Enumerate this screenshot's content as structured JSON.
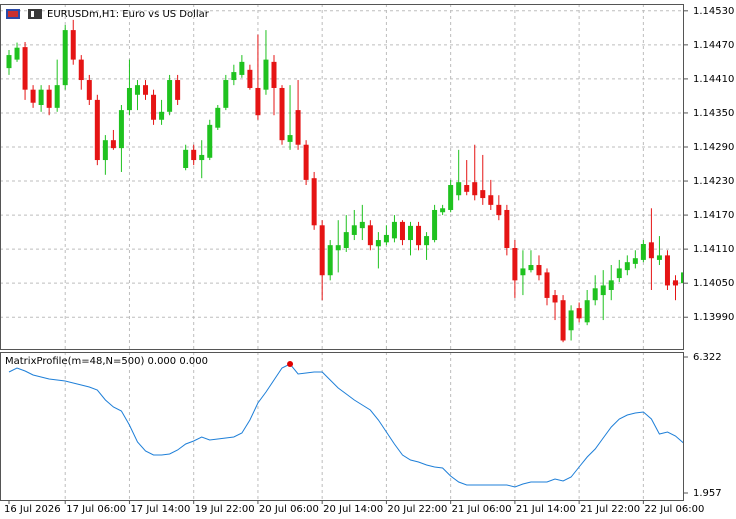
{
  "chart_data": [
    {
      "type": "candlestick",
      "title": "EURUSDm,H1:  Euro vs US Dollar",
      "categories": [
        "16 Jul 2026",
        null,
        null,
        null,
        null,
        null,
        null,
        "17 Jul 06:00",
        null,
        null,
        null,
        null,
        null,
        null,
        null,
        "17 Jul 14:00",
        null,
        null,
        null,
        null,
        null,
        null,
        null,
        "19 Jul 22:00",
        null,
        null,
        null,
        null,
        null,
        null,
        null,
        "20 Jul 06:00",
        null,
        null,
        null,
        null,
        null,
        null,
        null,
        "20 Jul 14:00",
        null,
        null,
        null,
        null,
        null,
        null,
        null,
        "20 Jul 22:00",
        null,
        null,
        null,
        null,
        null,
        null,
        null,
        "21 Jul 06:00",
        null,
        null,
        null,
        null,
        null,
        null,
        null,
        "21 Jul 14:00",
        null,
        null,
        null,
        null,
        null,
        null,
        null,
        "21 Jul 22:00",
        null,
        null,
        null,
        null,
        null,
        null,
        null,
        "22 Jul 06:00",
        null,
        null,
        null,
        null,
        null
      ],
      "open": [
        1.14429,
        1.14444,
        1.14466,
        1.14391,
        1.14364,
        1.14391,
        1.14359,
        1.14399,
        1.14496,
        1.14444,
        1.14408,
        1.14373,
        1.14267,
        1.14302,
        1.14288,
        1.14355,
        1.14382,
        1.14399,
        1.14382,
        1.14338,
        1.14352,
        1.14408,
        1.14253,
        1.14285,
        1.14267,
        1.14271,
        1.14324,
        1.14359,
        1.14408,
        1.14417,
        1.14426,
        1.14394,
        1.14391,
        1.1444,
        1.14394,
        1.14299,
        1.14355,
        1.14294,
        1.14235,
        1.14152,
        1.14064,
        1.14108,
        1.14112,
        1.14135,
        1.14147,
        1.14152,
        1.14115,
        1.14122,
        1.14129,
        1.14158,
        1.14126,
        1.14151,
        1.14117,
        1.14126,
        1.14175,
        1.14179,
        1.14205,
        1.14223,
        1.14228,
        1.14214,
        1.14205,
        1.14188,
        1.14179,
        1.14112,
        1.14064,
        1.14073,
        1.14082,
        1.14069,
        1.14029,
        1.1402,
        1.13967,
        1.14006,
        1.13981,
        1.1402,
        1.14029,
        1.14038,
        1.14059,
        1.14073,
        1.14084,
        1.14091,
        1.14122,
        1.14091,
        1.14099,
        1.14055,
        1.1405
      ],
      "high": [
        1.14461,
        1.14474,
        1.14475,
        1.14399,
        1.14399,
        1.14399,
        1.14444,
        1.14505,
        1.14514,
        1.14452,
        1.14417,
        1.14382,
        1.14311,
        1.1432,
        1.14364,
        1.14444,
        1.14408,
        1.14408,
        1.14391,
        1.14373,
        1.14417,
        1.14417,
        1.14294,
        1.14294,
        1.14302,
        1.14338,
        1.14364,
        1.14417,
        1.14435,
        1.14452,
        1.14435,
        1.14488,
        1.14496,
        1.14452,
        1.14399,
        1.14399,
        1.14408,
        1.14302,
        1.14246,
        1.14161,
        1.14126,
        1.14161,
        1.1417,
        1.14179,
        1.14188,
        1.14161,
        1.1414,
        1.14152,
        1.1417,
        1.14161,
        1.14158,
        1.14158,
        1.1414,
        1.14188,
        1.14188,
        1.14232,
        1.14285,
        1.14267,
        1.14294,
        1.14276,
        1.14232,
        1.14205,
        1.14188,
        1.14126,
        1.14108,
        1.14108,
        1.14099,
        1.14076,
        1.14038,
        1.14029,
        1.14011,
        1.14016,
        1.14038,
        1.14064,
        1.14073,
        1.14082,
        1.14091,
        1.14099,
        1.14108,
        1.14126,
        1.14182,
        1.14133,
        1.14108,
        1.14064,
        1.14076
      ],
      "low": [
        1.14417,
        1.1444,
        1.14373,
        1.14359,
        1.14352,
        1.14346,
        1.14352,
        1.14391,
        1.14435,
        1.14391,
        1.14364,
        1.14258,
        1.14241,
        1.14285,
        1.14246,
        1.14346,
        1.14355,
        1.14373,
        1.14329,
        1.14329,
        1.14346,
        1.14364,
        1.14249,
        1.14258,
        1.14235,
        1.14267,
        1.1432,
        1.14355,
        1.14399,
        1.14412,
        1.14391,
        1.14338,
        1.14382,
        1.14346,
        1.14294,
        1.14285,
        1.14285,
        1.14223,
        1.14144,
        1.1402,
        1.14055,
        1.14069,
        1.14105,
        1.14126,
        1.14126,
        1.14108,
        1.14076,
        1.14117,
        1.14122,
        1.14117,
        1.14099,
        1.14108,
        1.14091,
        1.14122,
        1.1417,
        1.14175,
        1.14196,
        1.14205,
        1.14196,
        1.14188,
        1.14179,
        1.14161,
        1.14099,
        1.14024,
        1.14029,
        1.14069,
        1.14055,
        1.14011,
        1.13985,
        1.13946,
        1.13949,
        1.13981,
        1.13976,
        1.14011,
        1.13985,
        1.1402,
        1.14052,
        1.14064,
        1.14076,
        1.14087,
        1.14038,
        1.14082,
        1.14038,
        1.1402,
        1.14038
      ],
      "close": [
        1.14452,
        1.14465,
        1.14391,
        1.14368,
        1.14391,
        1.14359,
        1.14399,
        1.14496,
        1.14444,
        1.14408,
        1.14373,
        1.14267,
        1.14302,
        1.14288,
        1.14355,
        1.14394,
        1.14399,
        1.14382,
        1.14338,
        1.14352,
        1.14408,
        1.14373,
        1.14285,
        1.14267,
        1.14276,
        1.14329,
        1.14359,
        1.14408,
        1.14422,
        1.1444,
        1.14394,
        1.14346,
        1.14444,
        1.14394,
        1.14302,
        1.14311,
        1.14294,
        1.14232,
        1.14152,
        1.14064,
        1.14117,
        1.14117,
        1.1414,
        1.14152,
        1.14158,
        1.14117,
        1.14126,
        1.14135,
        1.14158,
        1.14126,
        1.14151,
        1.14117,
        1.14133,
        1.14179,
        1.14182,
        1.14223,
        1.14228,
        1.14211,
        1.14205,
        1.142,
        1.14188,
        1.1417,
        1.14112,
        1.14055,
        1.14076,
        1.14082,
        1.14064,
        1.14024,
        1.14016,
        1.13949,
        1.14002,
        1.13988,
        1.1402,
        1.14041,
        1.14046,
        1.14055,
        1.14076,
        1.14087,
        1.14094,
        1.14119,
        1.14094,
        1.14099,
        1.14046,
        1.14046,
        1.14069
      ],
      "up_color": "#1fc21f",
      "down_color": "#e51414",
      "ylim": [
        1.13934,
        1.14542
      ],
      "yticks": [
        {
          "value": 1.1399,
          "label": "1.13990"
        },
        {
          "value": 1.1405,
          "label": "1.14050"
        },
        {
          "value": 1.1411,
          "label": "1.14110"
        },
        {
          "value": 1.1417,
          "label": "1.14170"
        },
        {
          "value": 1.1423,
          "label": "1.14230"
        },
        {
          "value": 1.1429,
          "label": "1.14290"
        },
        {
          "value": 1.1435,
          "label": "1.14350"
        },
        {
          "value": 1.1441,
          "label": "1.14410"
        },
        {
          "value": 1.1447,
          "label": "1.14470"
        },
        {
          "value": 1.1453,
          "label": "1.14530"
        }
      ],
      "grid": true
    },
    {
      "type": "line",
      "title": "MatrixProfile(m=48,N=500) 0.000 0.000",
      "values": [
        5.841,
        5.969,
        5.873,
        5.744,
        5.68,
        5.616,
        5.584,
        5.552,
        5.487,
        5.423,
        5.359,
        5.263,
        4.942,
        4.717,
        4.589,
        4.139,
        3.594,
        3.305,
        3.176,
        3.176,
        3.208,
        3.337,
        3.529,
        3.626,
        3.754,
        3.658,
        3.69,
        3.722,
        3.754,
        3.882,
        4.3,
        4.845,
        5.199,
        5.584,
        5.969,
        6.097,
        5.776,
        5.808,
        5.841,
        5.841,
        5.584,
        5.327,
        5.134,
        4.942,
        4.781,
        4.621,
        4.3,
        3.915,
        3.529,
        3.176,
        3.016,
        2.952,
        2.855,
        2.791,
        2.759,
        2.502,
        2.31,
        2.213,
        2.213,
        2.213,
        2.213,
        2.213,
        2.213,
        2.149,
        2.245,
        2.31,
        2.31,
        2.31,
        2.406,
        2.342,
        2.47,
        2.791,
        3.112,
        3.369,
        3.722,
        4.075,
        4.332,
        4.46,
        4.524,
        4.556,
        4.332,
        3.85,
        3.915,
        3.786,
        3.561
      ],
      "color": "#1e7fd8",
      "max_marker_color": "#e00000",
      "ylim": [
        1.732,
        6.483
      ],
      "yticks": [
        1.957,
        6.322
      ],
      "grid": false
    }
  ]
}
